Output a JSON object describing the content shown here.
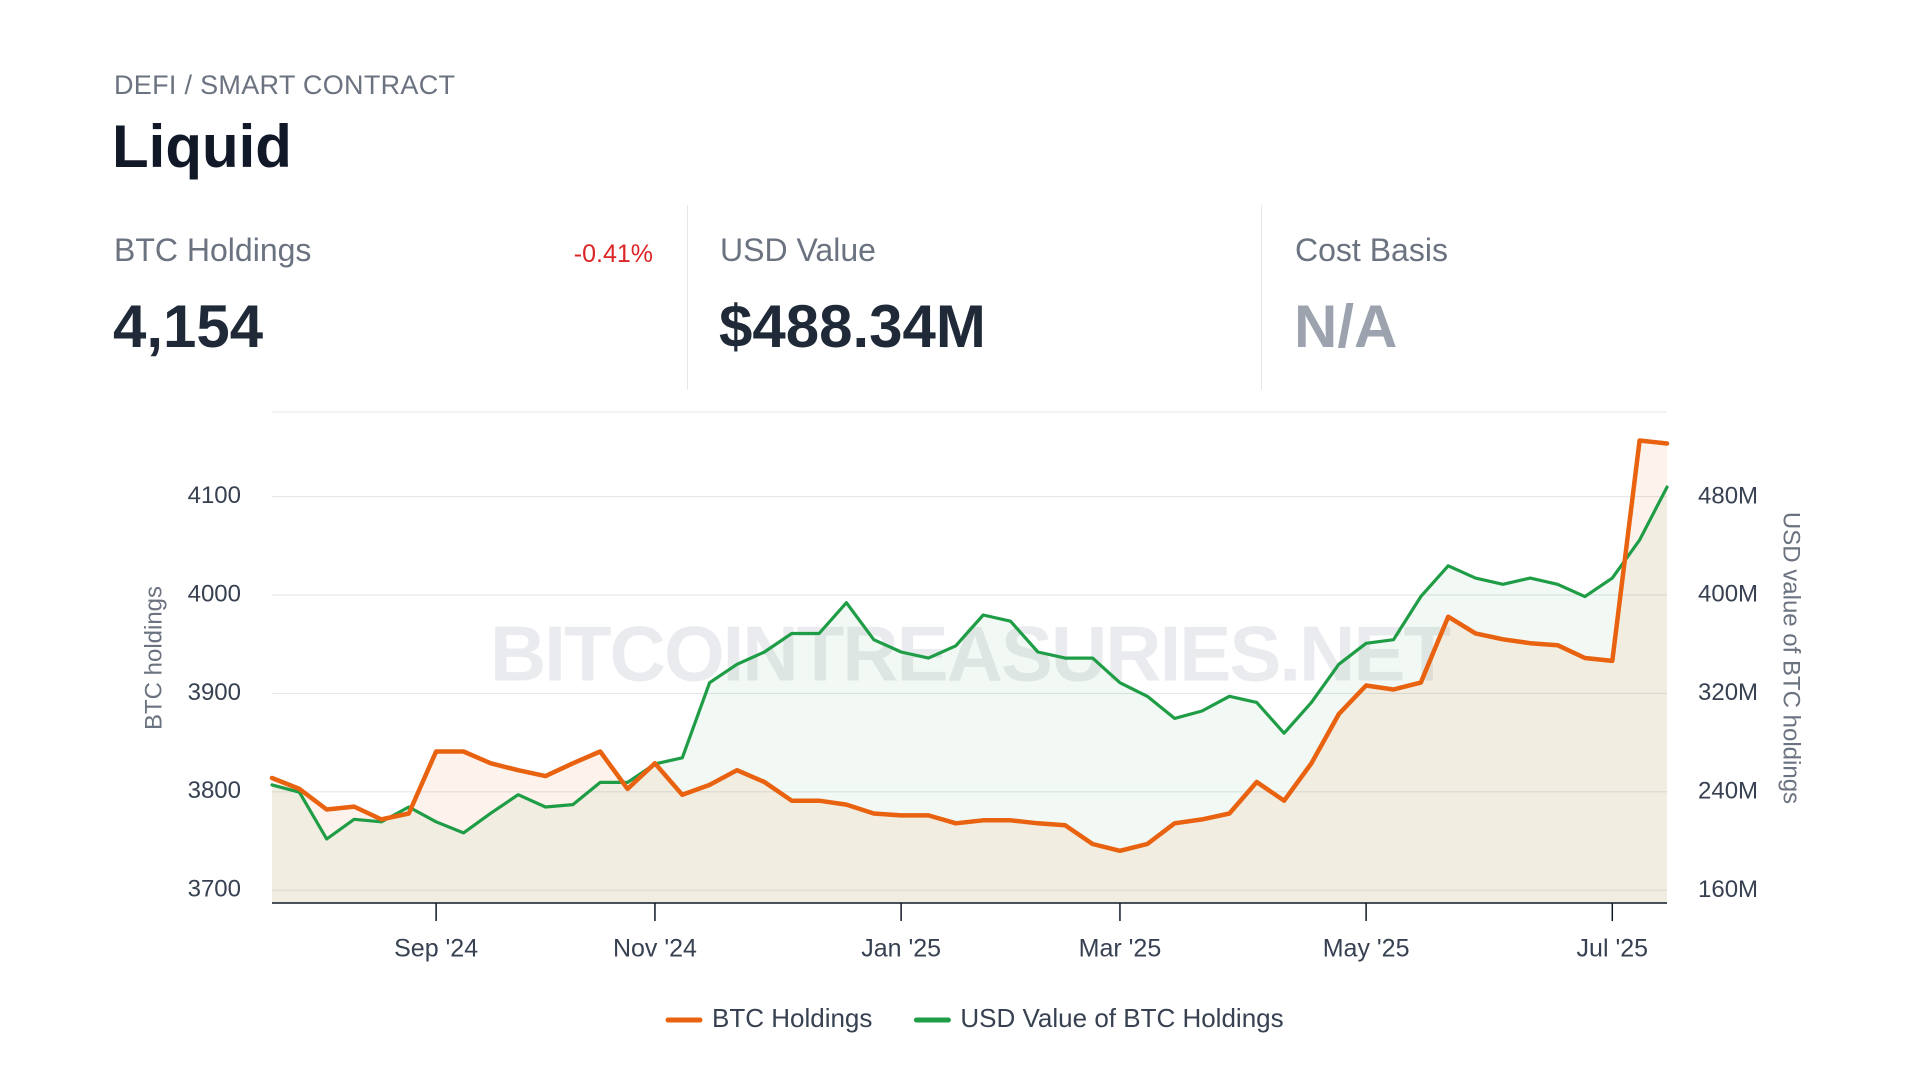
{
  "header": {
    "category": "DEFI / SMART CONTRACT",
    "title": "Liquid"
  },
  "stats": [
    {
      "label": "BTC Holdings",
      "value": "4,154",
      "change": "-0.41%"
    },
    {
      "label": "USD Value",
      "value": "$488.34M"
    },
    {
      "label": "Cost Basis",
      "value": "N/A"
    }
  ],
  "chart_data": {
    "type": "line",
    "watermark": "BITCOINTREASURIES.NET",
    "y_label": "BTC holdings",
    "y2_label": "USD value of BTC holdings",
    "categories": [
      null,
      null,
      null,
      null,
      null,
      null,
      "Sep '24",
      null,
      null,
      null,
      null,
      null,
      null,
      null,
      "Nov '24",
      null,
      null,
      null,
      null,
      null,
      null,
      null,
      null,
      "Jan '25",
      null,
      null,
      null,
      null,
      null,
      null,
      null,
      "Mar '25",
      null,
      null,
      null,
      null,
      null,
      null,
      null,
      null,
      "May '25",
      null,
      null,
      null,
      null,
      null,
      null,
      null,
      null,
      "Jul '25",
      null,
      null
    ],
    "series": [
      {
        "name": "BTC Holdings",
        "color": "#e8620f",
        "axis": "y",
        "values": [
          3814,
          3803,
          3782,
          3785,
          3772,
          3778,
          3841,
          3841,
          3829,
          3822,
          3816,
          3829,
          3841,
          3803,
          3829,
          3797,
          3807,
          3822,
          3810,
          3791,
          3791,
          3787,
          3778,
          3776,
          3776,
          3768,
          3771,
          3771,
          3768,
          3766,
          3747,
          3740,
          3747,
          3768,
          3772,
          3778,
          3810,
          3791,
          3829,
          3879,
          3908,
          3904,
          3911,
          3978,
          3961,
          3955,
          3951,
          3949,
          3936,
          3933,
          4157,
          4154
        ]
      },
      {
        "name": "USD Value of BTC Holdings",
        "color": "#1f9d46",
        "axis": "y2",
        "values": [
          246000000,
          240000000,
          202000000,
          218000000,
          216000000,
          228000000,
          216000000,
          207000000,
          223000000,
          238000000,
          228000000,
          230000000,
          248000000,
          248000000,
          263000000,
          268000000,
          329000000,
          344000000,
          354000000,
          369000000,
          369000000,
          394000000,
          364000000,
          354000000,
          349000000,
          359000000,
          384000000,
          379000000,
          354000000,
          349000000,
          349000000,
          329000000,
          318000000,
          300000000,
          306000000,
          318000000,
          313000000,
          288000000,
          313000000,
          344000000,
          361000000,
          364000000,
          399000000,
          424000000,
          414000000,
          409000000,
          414000000,
          409000000,
          399000000,
          414000000,
          445000000,
          488000000
        ]
      }
    ],
    "ylim": [
      3687,
      4186
    ],
    "yticks": [
      3700,
      3800,
      3900,
      4000,
      4100
    ],
    "y2lim": [
      150000000,
      549000000
    ],
    "y2ticks": [
      {
        "value": 160000000,
        "label": "160M"
      },
      {
        "value": 240000000,
        "label": "240M"
      },
      {
        "value": 320000000,
        "label": "320M"
      },
      {
        "value": 400000000,
        "label": "400M"
      },
      {
        "value": 480000000,
        "label": "480M"
      }
    ],
    "grid": true,
    "legend": "bottom"
  }
}
